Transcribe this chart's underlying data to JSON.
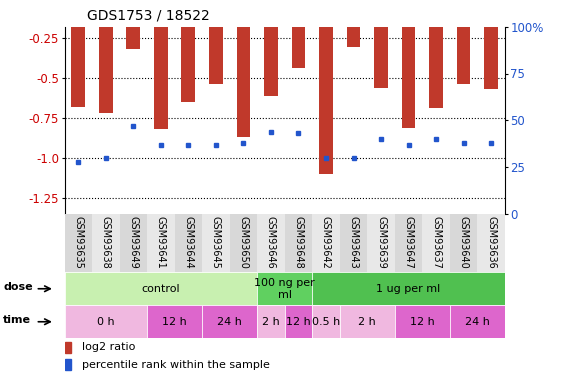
{
  "title": "GDS1753 / 18522",
  "samples": [
    "GSM93635",
    "GSM93638",
    "GSM93649",
    "GSM93641",
    "GSM93644",
    "GSM93645",
    "GSM93650",
    "GSM93646",
    "GSM93648",
    "GSM93642",
    "GSM93643",
    "GSM93639",
    "GSM93647",
    "GSM93637",
    "GSM93640",
    "GSM93636"
  ],
  "log2_ratio": [
    -0.68,
    -0.72,
    -0.32,
    -0.82,
    -0.65,
    -0.54,
    -0.87,
    -0.61,
    -0.44,
    -1.1,
    -0.31,
    -0.56,
    -0.81,
    -0.69,
    -0.54,
    -0.57
  ],
  "percentile_rank": [
    28,
    30,
    47,
    37,
    37,
    37,
    38,
    44,
    43,
    30,
    30,
    40,
    37,
    40,
    38,
    38
  ],
  "bar_color": "#c0392b",
  "dot_color": "#2255cc",
  "ylim_left": [
    -1.35,
    -0.18
  ],
  "yticks_left": [
    -1.25,
    -1.0,
    -0.75,
    -0.5,
    -0.25
  ],
  "ylim_right": [
    0,
    100
  ],
  "yticks_right": [
    0,
    25,
    50,
    75,
    100
  ],
  "yticklabels_right": [
    "0",
    "25",
    "50",
    "75",
    "100%"
  ],
  "dose_groups": [
    {
      "label": "control",
      "start": 0,
      "end": 6,
      "color": "#c8f0b0"
    },
    {
      "label": "100 ng per\nml",
      "start": 7,
      "end": 8,
      "color": "#60d060"
    },
    {
      "label": "1 ug per ml",
      "start": 9,
      "end": 15,
      "color": "#50c050"
    }
  ],
  "time_groups": [
    {
      "label": "0 h",
      "start": 0,
      "end": 2,
      "color": "#f0b8e0"
    },
    {
      "label": "12 h",
      "start": 3,
      "end": 4,
      "color": "#dd66cc"
    },
    {
      "label": "24 h",
      "start": 5,
      "end": 6,
      "color": "#dd66cc"
    },
    {
      "label": "2 h",
      "start": 7,
      "end": 7,
      "color": "#f0b8e0"
    },
    {
      "label": "12 h",
      "start": 8,
      "end": 8,
      "color": "#dd66cc"
    },
    {
      "label": "0.5 h",
      "start": 9,
      "end": 9,
      "color": "#f0b8e0"
    },
    {
      "label": "2 h",
      "start": 10,
      "end": 11,
      "color": "#f0b8e0"
    },
    {
      "label": "12 h",
      "start": 12,
      "end": 13,
      "color": "#dd66cc"
    },
    {
      "label": "24 h",
      "start": 14,
      "end": 15,
      "color": "#dd66cc"
    }
  ],
  "legend_bar_label": "log2 ratio",
  "legend_dot_label": "percentile rank within the sample",
  "dose_label": "dose",
  "time_label": "time",
  "tick_label_color_left": "#cc0000",
  "tick_label_color_right": "#2255cc",
  "bar_width": 0.5
}
